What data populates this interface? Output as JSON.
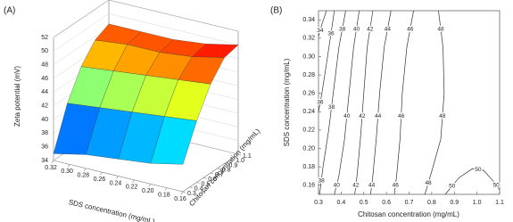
{
  "chart_data": [
    {
      "type": "surface",
      "title": "(A)",
      "xlabel": "SDS concentration (mg/mL)",
      "ylabel": "Chitosan concentration (mg/mL)",
      "zlabel": "Zeta potential (mV)",
      "x": [
        0.16,
        0.2,
        0.24,
        0.28,
        0.32
      ],
      "y": [
        0.3,
        0.5,
        0.7,
        0.9,
        1.1
      ],
      "z": [
        [
          38,
          43,
          47,
          49.5,
          50
        ],
        [
          37,
          42.5,
          46.5,
          48.5,
          49
        ],
        [
          36.5,
          42,
          46,
          48,
          48.5
        ],
        [
          36,
          41.5,
          45.5,
          48,
          48.5
        ],
        [
          35,
          41,
          45,
          47.5,
          48.5
        ]
      ],
      "xlim": [
        0.32,
        0.16
      ],
      "xticks": [
        0.32,
        {
          "value": 0.3,
          "label": "0.30"
        },
        0.28,
        0.26,
        0.24,
        0.22,
        {
          "value": 0.2,
          "label": "0.20"
        },
        0.18,
        0.16
      ],
      "ylim": [
        0.3,
        1.1
      ],
      "yticks": [
        0.3,
        0.4,
        0.5,
        0.6,
        0.7,
        0.8,
        0.9,
        {
          "value": 1,
          "label": "1.0"
        },
        1.1
      ],
      "zlim": [
        34,
        52
      ],
      "zticks": [
        34,
        36,
        38,
        40,
        42,
        44,
        46,
        48,
        50,
        52
      ],
      "colormap": "jet"
    },
    {
      "type": "contour",
      "title": "(B)",
      "xlabel": "Chitosan concentration (mg/mL)",
      "ylabel": "SDS concentration (mg/mL)",
      "xlim": [
        0.3,
        1.1
      ],
      "xticks": [
        0.3,
        0.4,
        0.5,
        0.6,
        0.7,
        0.8,
        0.9,
        {
          "value": 1,
          "label": "1.0"
        },
        1.1
      ],
      "ylim": [
        0.15,
        0.35
      ],
      "yticks": [
        0.16,
        0.18,
        {
          "value": 0.2,
          "label": "0.20"
        },
        0.22,
        0.24,
        0.26,
        0.28,
        {
          "value": 0.3,
          "label": "0.30"
        },
        0.32,
        0.34
      ],
      "color": "#333333",
      "contours": [
        {
          "level": 34,
          "x": [
            0.3,
            0.315,
            0.335
          ],
          "y": [
            0.322,
            0.335,
            0.35
          ]
        },
        {
          "level": 36,
          "x": [
            0.37,
            0.34,
            0.315,
            0.3
          ],
          "y": [
            0.35,
            0.3,
            0.26,
            0.24
          ]
        },
        {
          "level": 38,
          "x": [
            0.42,
            0.39,
            0.37,
            0.345,
            0.32,
            0.305
          ],
          "y": [
            0.35,
            0.31,
            0.27,
            0.22,
            0.18,
            0.15
          ]
        },
        {
          "level": 40,
          "x": [
            0.48,
            0.455,
            0.435,
            0.415,
            0.39,
            0.37
          ],
          "y": [
            0.35,
            0.31,
            0.26,
            0.21,
            0.17,
            0.15
          ]
        },
        {
          "level": 42,
          "x": [
            0.54,
            0.515,
            0.5,
            0.485,
            0.47,
            0.46
          ],
          "y": [
            0.35,
            0.31,
            0.26,
            0.21,
            0.17,
            0.15
          ]
        },
        {
          "level": 44,
          "x": [
            0.62,
            0.59,
            0.57,
            0.555,
            0.54,
            0.53
          ],
          "y": [
            0.35,
            0.31,
            0.26,
            0.21,
            0.17,
            0.15
          ]
        },
        {
          "level": 46,
          "x": [
            0.72,
            0.69,
            0.67,
            0.66,
            0.645,
            0.635
          ],
          "y": [
            0.35,
            0.31,
            0.26,
            0.21,
            0.17,
            0.15
          ]
        },
        {
          "level": 48,
          "x": [
            0.83,
            0.85,
            0.855,
            0.84,
            0.8,
            0.77
          ],
          "y": [
            0.35,
            0.31,
            0.26,
            0.21,
            0.175,
            0.15
          ]
        },
        {
          "level": 50,
          "x": [
            0.86,
            0.92,
            0.98,
            1.03,
            1.07,
            1.1
          ],
          "y": [
            0.15,
            0.168,
            0.178,
            0.176,
            0.165,
            0.155
          ]
        }
      ]
    }
  ]
}
